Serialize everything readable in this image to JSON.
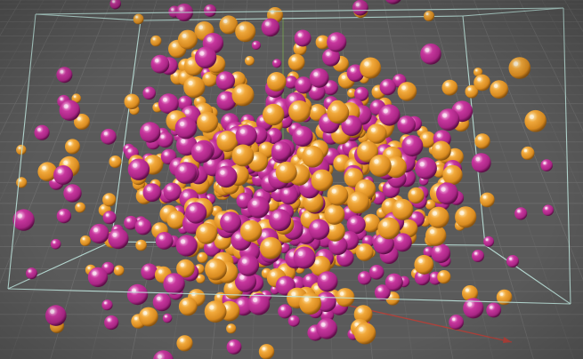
{
  "viewport": {
    "background_color": "#5a5a5a",
    "grid_line_color": "#6d6d6d",
    "grid_minor_color": "#636363",
    "bounding_box_color": "#bfe6de",
    "grid_visible": true
  },
  "particles": {
    "primary_color": "#f2a93b",
    "secondary_color": "#c8379e",
    "primary_icon": "orange-sphere-icon",
    "secondary_icon": "magenta-sphere-icon"
  },
  "axes": {
    "x_axis_color": "#b0413a",
    "y_axis_color": "#7fc04f",
    "icon": "world-axis-icon"
  }
}
